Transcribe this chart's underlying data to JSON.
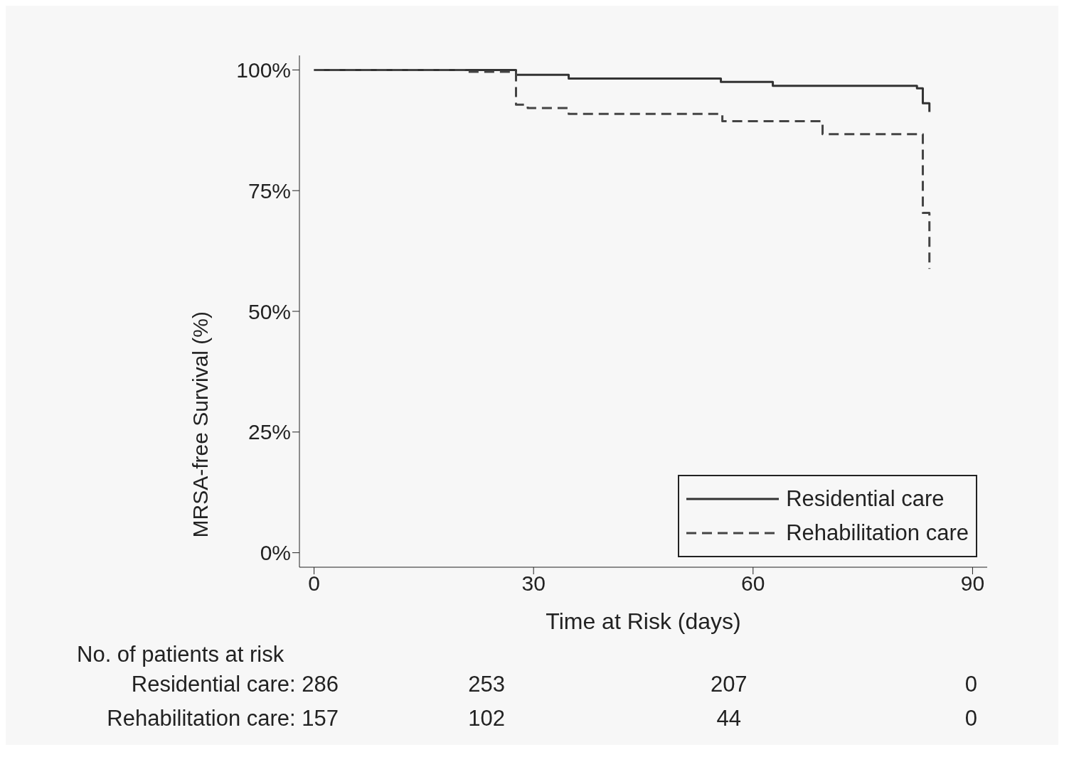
{
  "chart_data": {
    "type": "step",
    "xlabel": "Time at Risk (days)",
    "ylabel": "MRSA-free Survival (%)",
    "xlim": [
      -2,
      92
    ],
    "xticks": [
      0,
      30,
      60,
      90
    ],
    "ylim": [
      -3,
      103
    ],
    "yticks": [
      {
        "value": 0,
        "label": "0%"
      },
      {
        "value": 25,
        "label": "25%"
      },
      {
        "value": 50,
        "label": "50%"
      },
      {
        "value": 75,
        "label": "75%"
      },
      {
        "value": 100,
        "label": "100%"
      }
    ],
    "legend": "bottom right",
    "series": [
      {
        "name": "Residential care",
        "color": "#333333",
        "line_style": "solid",
        "x": [
          0,
          27.6,
          34.8,
          55.6,
          62.7,
          82.4,
          83.2,
          84.1
        ],
        "values": [
          100,
          99,
          98.2,
          97.5,
          96.7,
          96.2,
          93.1,
          91.3
        ]
      },
      {
        "name": "Rehabilitation care",
        "color": "#444444",
        "line_style": "dashed",
        "x": [
          0,
          20.6,
          27.6,
          29.2,
          34.8,
          55.8,
          69.5,
          83.2,
          84.1
        ],
        "values": [
          100,
          99.6,
          92.8,
          92.1,
          90.9,
          89.4,
          86.7,
          70.4,
          58.8
        ]
      }
    ],
    "annotations": [
      "No. of patients at risk",
      "Residential care: 286",
      "253",
      "207",
      "0",
      "Rehabilitation care: 157",
      "102",
      "44",
      "0"
    ]
  }
}
